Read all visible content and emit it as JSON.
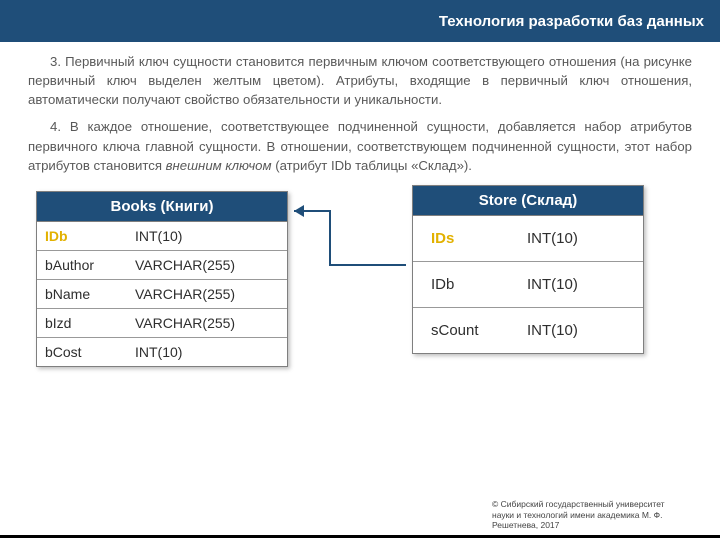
{
  "colors": {
    "header_bg": "#1f4e79",
    "header_text": "#ffffff",
    "body_text": "#595959",
    "pk_color": "#e2b100",
    "table_border": "#7f7f7f",
    "table_header_bg": "#1f4e79",
    "bg": "#ffffff"
  },
  "header": {
    "title": "Технология разработки баз данных"
  },
  "paragraphs": {
    "p1": "3. Первичный ключ сущности становится первичным ключом соответствующего отношения (на рисунке первичный ключ выделен желтым цветом). Атрибуты, входящие в первичный ключ отношения, автоматически получают свойство обязательности и уникальности.",
    "p2_a": "4. В каждое отношение, соответствующее подчиненной сущности, добавляется набор атрибутов первичного ключа главной сущности. В отношении, соответствующем подчиненной сущности, этот набор атрибутов становится ",
    "p2_em": "внешним ключом",
    "p2_b": " (атрибут IDb таблицы «Склад»)."
  },
  "tables": {
    "books": {
      "title": "Books (Книги)",
      "rows": [
        {
          "name": "IDb",
          "type": "INT(10)",
          "pk": true
        },
        {
          "name": "bAuthor",
          "type": "VARCHAR(255)",
          "pk": false
        },
        {
          "name": "bName",
          "type": "VARCHAR(255)",
          "pk": false
        },
        {
          "name": "bIzd",
          "type": "VARCHAR(255)",
          "pk": false
        },
        {
          "name": "bCost",
          "type": "INT(10)",
          "pk": false
        }
      ]
    },
    "store": {
      "title": "Store (Склад)",
      "rows": [
        {
          "name": "IDs",
          "type": "INT(10)",
          "pk": true
        },
        {
          "name": "IDb",
          "type": "INT(10)",
          "pk": false
        },
        {
          "name": "sCount",
          "type": "INT(10)",
          "pk": false
        }
      ]
    }
  },
  "arrow": {
    "stroke": "#1f4e79",
    "width": 2
  },
  "footer": {
    "line1": "© Сибирский государственный университет",
    "line2": "науки и технологий имени академика М. Ф.",
    "line3": "Решетнева, 2017"
  }
}
